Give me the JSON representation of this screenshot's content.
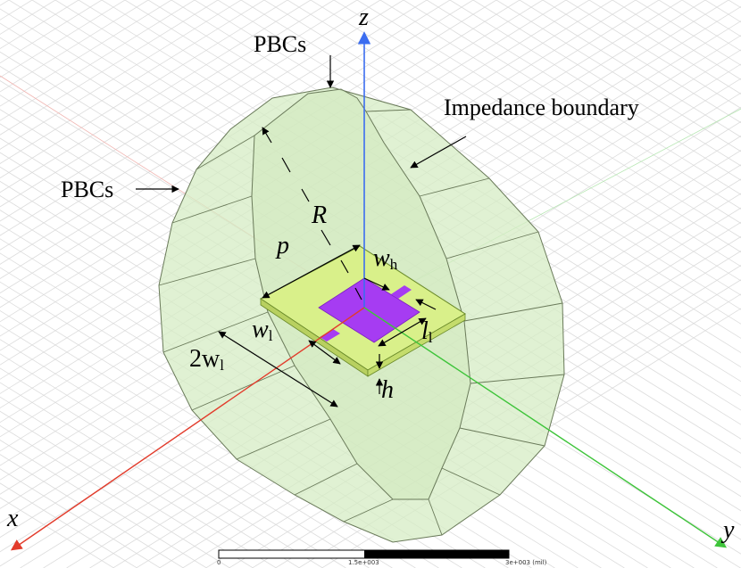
{
  "axes": {
    "x": "x",
    "y": "y",
    "z": "z"
  },
  "labels": {
    "pbcs_top": "PBCs",
    "pbcs_left": "PBCs",
    "impedance": "Impedance boundary",
    "R": "R",
    "p": "p",
    "w": "w",
    "h_sub": "h",
    "l": "l",
    "l_sub": "l",
    "w1": "w",
    "w1_sub": "l",
    "two_w": "2w",
    "two_w_sub": "l",
    "h": "h"
  },
  "scale_bar": {
    "t0": "0",
    "t1": "1.5e+003",
    "t2": "3e+003 (mil)"
  },
  "colors": {
    "enclosure_fill": "#d6ecc4",
    "enclosure_stroke": "#6a7a5a",
    "substrate": "#d9f08a",
    "patch": "#a63cf2",
    "x_axis": "#e23b2b",
    "y_axis": "#3ec43a",
    "z_axis": "#3b6df0"
  }
}
